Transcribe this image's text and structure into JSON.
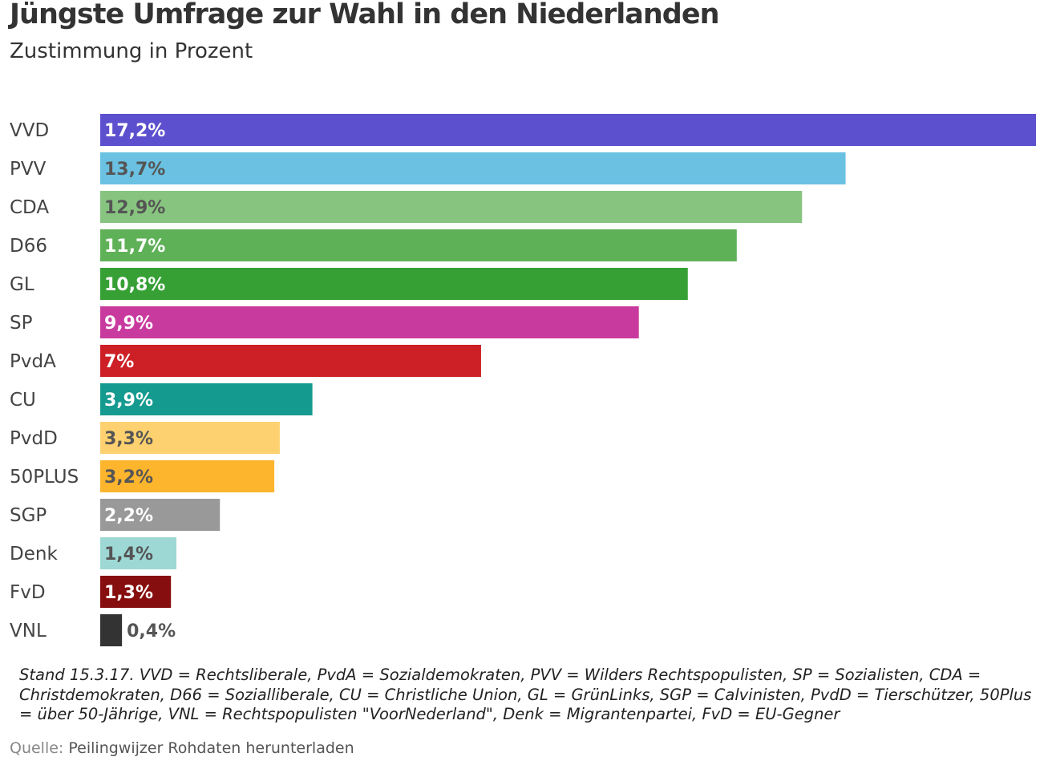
{
  "header": {
    "title": "Jüngste Umfrage zur Wahl in den Niederlanden",
    "subtitle": "Zustimmung in Prozent"
  },
  "chart_data": {
    "type": "bar",
    "orientation": "horizontal",
    "title": "Jüngste Umfrage zur Wahl in den Niederlanden",
    "subtitle": "Zustimmung in Prozent",
    "xlim": [
      0,
      17.2
    ],
    "grid": false,
    "legend": "none",
    "categories": [
      "VVD",
      "PVV",
      "CDA",
      "D66",
      "GL",
      "SP",
      "PvdA",
      "CU",
      "PvdD",
      "50PLUS",
      "SGP",
      "Denk",
      "FvD",
      "VNL"
    ],
    "values": [
      17.2,
      13.7,
      12.9,
      11.7,
      10.8,
      9.9,
      7,
      3.9,
      3.3,
      3.2,
      2.2,
      1.4,
      1.3,
      0.4
    ],
    "value_labels": [
      "17,2%",
      "13,7%",
      "12,9%",
      "11,7%",
      "10,8%",
      "9,9%",
      "7%",
      "3,9%",
      "3,3%",
      "3,2%",
      "2,2%",
      "1,4%",
      "1,3%",
      "0,4%"
    ],
    "colors": [
      "#5c50cf",
      "#6ac1e1",
      "#87c47f",
      "#5fb158",
      "#36a035",
      "#c93a9e",
      "#cd1f26",
      "#159a8f",
      "#fdd16f",
      "#fdb52e",
      "#999999",
      "#9ed8d5",
      "#870e0e",
      "#333333"
    ],
    "label_colors": [
      "#ffffff",
      "#555555",
      "#555555",
      "#ffffff",
      "#ffffff",
      "#ffffff",
      "#ffffff",
      "#ffffff",
      "#555555",
      "#555555",
      "#ffffff",
      "#555555",
      "#ffffff",
      "#555555"
    ]
  },
  "footer": {
    "note": "Stand 15.3.17. VVD = Rechtsliberale, PvdA = Sozialdemokraten, PVV = Wilders Rechtspopulisten, SP = Sozialisten, CDA = Christdemokraten, D66 = Sozialliberale, CU = Christliche Union, GL = GrünLinks, SGP = Calvinisten, PvdD = Tierschützer, 50Plus = über 50-Jährige, VNL = Rechtspopulisten \"VoorNederland\", Denk = Migrantenpartei, FvD = EU-Gegner",
    "source_label": "Quelle:",
    "source_text": "Peilingwijzer Rohdaten herunterladen"
  }
}
